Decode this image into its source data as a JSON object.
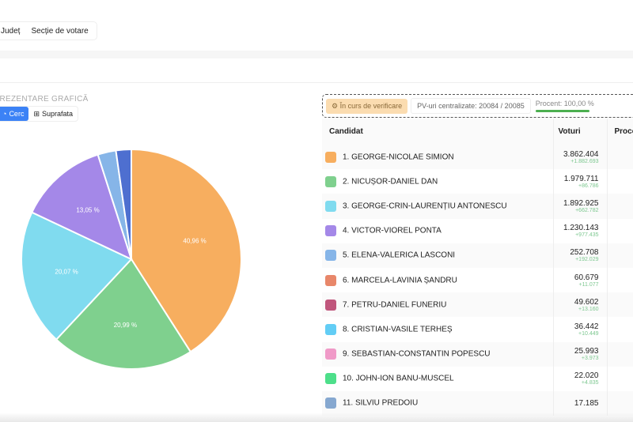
{
  "nav": {
    "items": [
      "Județ",
      "Secție de votare"
    ]
  },
  "visualization": {
    "title": "REPREZENTARE GRAFICĂ",
    "options": [
      {
        "label": "Cerc",
        "icon": "pie-icon",
        "active": true
      },
      {
        "label": "Suprafata",
        "icon": "treemap-icon",
        "active": false
      }
    ]
  },
  "status": {
    "badge": "În curs de verificare",
    "pv": "PV-uri centralizate: 20084 / 20085",
    "percent_label": "Procent: 100,00 %",
    "percent": 100,
    "accent": "#4caf50"
  },
  "table": {
    "headers": [
      "Candidat",
      "Voturi",
      "Procent"
    ],
    "rows": [
      {
        "name": "1. GEORGE-NICOLAE SIMION",
        "votes": "3.862.404",
        "delta": "+1.882.693",
        "color": "#f7ae5f"
      },
      {
        "name": "2. NICUȘOR-DANIEL DAN",
        "votes": "1.979.711",
        "delta": "+86.786",
        "color": "#7fd08e"
      },
      {
        "name": "3. GEORGE-CRIN-LAURENȚIU ANTONESCU",
        "votes": "1.892.925",
        "delta": "+662.782",
        "color": "#80dbef"
      },
      {
        "name": "4. VICTOR-VIOREL PONTA",
        "votes": "1.230.143",
        "delta": "+977.435",
        "color": "#a488e8"
      },
      {
        "name": "5. ELENA-VALERICA LASCONI",
        "votes": "252.708",
        "delta": "+192.029",
        "color": "#86b5e8"
      },
      {
        "name": "6. MARCELA-LAVINIA ȘANDRU",
        "votes": "60.679",
        "delta": "+11.077",
        "color": "#e8876a"
      },
      {
        "name": "7. PETRU-DANIEL FUNERIU",
        "votes": "49.602",
        "delta": "+13.160",
        "color": "#c0567c"
      },
      {
        "name": "8. CRISTIAN-VASILE TERHEȘ",
        "votes": "36.442",
        "delta": "+10.449",
        "color": "#62cdf5"
      },
      {
        "name": "9. SEBASTIAN-CONSTANTIN POPESCU",
        "votes": "25.993",
        "delta": "+3.973",
        "color": "#f09ac8"
      },
      {
        "name": "10. JOHN-ION BANU-MUSCEL",
        "votes": "22.020",
        "delta": "+4.835",
        "color": "#4ddf8a"
      },
      {
        "name": "11. SILVIU PREDOIU",
        "votes": "17.185",
        "delta": "",
        "color": "#86a8d0"
      }
    ]
  },
  "chart_data": {
    "type": "pie",
    "direction": "clockwise from top",
    "slices": [
      {
        "value": 40.96,
        "label": "40,96 %",
        "color": "#f7ae5f"
      },
      {
        "value": 20.99,
        "label": "20,99 %",
        "color": "#7fd08e"
      },
      {
        "value": 20.07,
        "label": "20,07 %",
        "color": "#80dbef"
      },
      {
        "value": 13.05,
        "label": "13,05 %",
        "color": "#a488e8"
      },
      {
        "value": 2.68,
        "label": "",
        "color": "#86b5e8"
      },
      {
        "value": 2.25,
        "label": "",
        "color": "#4e6fd0"
      }
    ]
  }
}
